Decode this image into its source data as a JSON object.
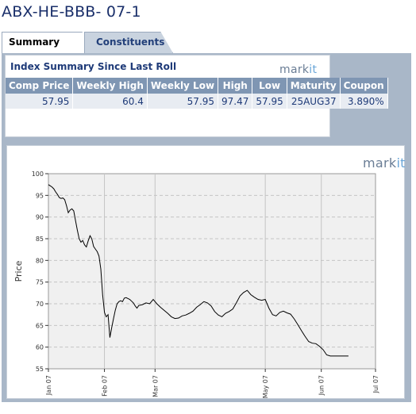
{
  "title": "ABX-HE-BBB- 07-1",
  "tabs": [
    {
      "label": "Summary",
      "active": true
    },
    {
      "label": "Constituents",
      "active": false
    }
  ],
  "summary": {
    "heading": "Index Summary Since Last Roll",
    "columns": [
      "Comp Price",
      "Weekly High",
      "Weekly Low",
      "High",
      "Low",
      "Maturity",
      "Coupon"
    ],
    "row": [
      "57.95",
      "60.4",
      "57.95",
      "97.47",
      "57.95",
      "25AUG37",
      "3.890%"
    ]
  },
  "logo": {
    "mark": "mark",
    "it": "it"
  },
  "colors": {
    "title": "#1a2f6a",
    "header_bg": "#7f96b3",
    "panel_bg": "#a9b7c8",
    "plot_bg": "#f0f0f0"
  },
  "chart_data": {
    "type": "line",
    "ylabel": "Price",
    "xlabel": "",
    "ylim": [
      55,
      100
    ],
    "yticks": [
      55,
      60,
      65,
      70,
      75,
      80,
      85,
      90,
      95,
      100
    ],
    "x_tick_labels": [
      "Jan 07",
      "Feb 07",
      "Mar 07",
      "May 07",
      "Jun 07",
      "Jul 07"
    ],
    "x_tick_days": [
      0,
      31,
      59,
      120,
      151,
      181
    ],
    "grid": true,
    "series": [
      {
        "x": [
          0,
          1,
          2,
          3,
          4,
          5,
          6,
          7,
          8,
          9,
          10,
          11,
          12,
          13,
          14,
          15,
          16,
          17,
          18,
          19,
          20,
          21,
          22,
          23,
          24,
          25,
          26,
          27,
          28,
          29,
          30,
          31,
          32,
          33,
          34,
          35,
          36,
          37,
          38,
          39,
          40,
          41,
          42,
          43,
          44,
          45,
          46,
          47,
          48,
          49,
          50,
          52,
          54,
          56,
          58,
          60,
          62,
          64,
          66,
          68,
          70,
          72,
          74,
          76,
          78,
          80,
          82,
          84,
          86,
          88,
          90,
          92,
          94,
          96,
          98,
          100,
          102,
          104,
          106,
          108,
          110,
          112,
          114,
          116,
          118,
          120,
          122,
          124,
          126,
          128,
          130,
          132,
          134,
          136,
          138,
          140,
          142,
          144,
          146,
          148,
          150,
          152,
          154,
          156,
          158,
          160,
          162,
          164,
          166
        ],
        "y": [
          97.47,
          97.2,
          96.9,
          96.5,
          95.8,
          95.2,
          94.5,
          94.3,
          94.4,
          94.0,
          92.6,
          91.0,
          91.6,
          91.9,
          91.4,
          89.2,
          87.0,
          85.0,
          84.2,
          84.6,
          83.6,
          83.1,
          84.5,
          85.7,
          85.0,
          83.2,
          82.6,
          82.0,
          81.0,
          78.0,
          72.0,
          68.0,
          67.0,
          67.5,
          62.2,
          64.5,
          66.5,
          68.5,
          70.0,
          70.5,
          70.7,
          70.5,
          71.3,
          71.4,
          71.2,
          71.0,
          70.6,
          70.2,
          69.5,
          69.0,
          69.6,
          69.8,
          70.2,
          70.0,
          71.0,
          70.0,
          69.2,
          68.5,
          67.8,
          67.0,
          66.6,
          66.7,
          67.2,
          67.4,
          67.8,
          68.3,
          69.2,
          69.8,
          70.5,
          70.2,
          69.5,
          68.2,
          67.4,
          67.0,
          67.8,
          68.2,
          68.8,
          70.2,
          71.8,
          72.6,
          73.1,
          72.1,
          71.5,
          71.0,
          70.8,
          71.0,
          69.0,
          67.5,
          67.2,
          68.0,
          68.3,
          67.9,
          67.6,
          66.5,
          65.2,
          63.8,
          62.5,
          61.3,
          60.9,
          60.8,
          60.2,
          59.4,
          58.2,
          57.95,
          57.95,
          57.95,
          57.95,
          57.95,
          57.95
        ]
      }
    ]
  }
}
